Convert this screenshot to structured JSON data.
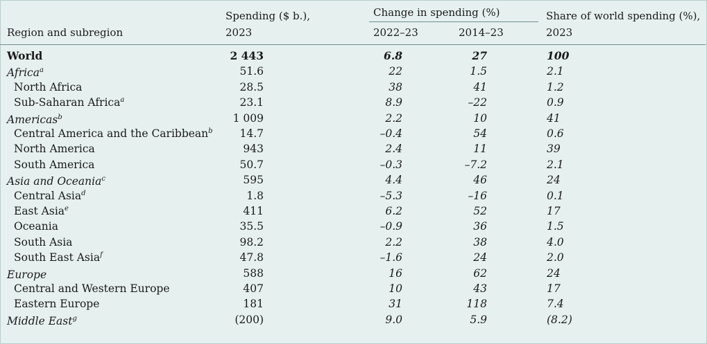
{
  "headers": {
    "region": "Region and subregion",
    "spending_l1": "Spending ($ b.),",
    "spending_l2": "2023",
    "change": "Change in spending (%)",
    "p1": "2022–23",
    "p2": "2014–23",
    "share_l1": "Share of world spending (%),",
    "share_l2": "2023"
  },
  "rows": [
    {
      "name": "World",
      "sup": "",
      "spending": "2 443",
      "c1": "6.8",
      "c2": "27",
      "share": "100",
      "type": "world"
    },
    {
      "name": "Africa",
      "sup": "a",
      "spending": "51.6",
      "c1": "22",
      "c2": "1.5",
      "share": "2.1",
      "type": "region"
    },
    {
      "name": "North Africa",
      "sup": "",
      "spending": "28.5",
      "c1": "38",
      "c2": "41",
      "share": "1.2",
      "type": "sub"
    },
    {
      "name": "Sub-Saharan Africa",
      "sup": "a",
      "spending": "23.1",
      "c1": "8.9",
      "c2": "–22",
      "share": "0.9",
      "type": "sub"
    },
    {
      "name": "Americas",
      "sup": "b",
      "spending": "1 009",
      "c1": "2.2",
      "c2": "10",
      "share": "41",
      "type": "region"
    },
    {
      "name": "Central America and the Caribbean",
      "sup": "b",
      "spending": "14.7",
      "c1": "–0.4",
      "c2": "54",
      "share": "0.6",
      "type": "sub"
    },
    {
      "name": "North America",
      "sup": "",
      "spending": "943",
      "c1": "2.4",
      "c2": "11",
      "share": "39",
      "type": "sub"
    },
    {
      "name": "South America",
      "sup": "",
      "spending": "50.7",
      "c1": "–0.3",
      "c2": "–7.2",
      "share": "2.1",
      "type": "sub"
    },
    {
      "name": "Asia and Oceania",
      "sup": "c",
      "spending": "595",
      "c1": "4.4",
      "c2": "46",
      "share": "24",
      "type": "region"
    },
    {
      "name": "Central Asia",
      "sup": "d",
      "spending": "1.8",
      "c1": "–5.3",
      "c2": "–16",
      "share": "0.1",
      "type": "sub"
    },
    {
      "name": "East Asia",
      "sup": "e",
      "spending": "411",
      "c1": "6.2",
      "c2": "52",
      "share": "17",
      "type": "sub"
    },
    {
      "name": "Oceania",
      "sup": "",
      "spending": "35.5",
      "c1": "–0.9",
      "c2": "36",
      "share": "1.5",
      "type": "sub"
    },
    {
      "name": "South Asia",
      "sup": "",
      "spending": "98.2",
      "c1": "2.2",
      "c2": "38",
      "share": "4.0",
      "type": "sub"
    },
    {
      "name": "South East Asia",
      "sup": "f",
      "spending": "47.8",
      "c1": "–1.6",
      "c2": "24",
      "share": "2.0",
      "type": "sub"
    },
    {
      "name": "Europe",
      "sup": "",
      "spending": "588",
      "c1": "16",
      "c2": "62",
      "share": "24",
      "type": "region"
    },
    {
      "name": "Central and Western Europe",
      "sup": "",
      "spending": "407",
      "c1": "10",
      "c2": "43",
      "share": "17",
      "type": "sub"
    },
    {
      "name": "Eastern Europe",
      "sup": "",
      "spending": "181",
      "c1": "31",
      "c2": "118",
      "share": "7.4",
      "type": "sub"
    },
    {
      "name": "Middle East",
      "sup": "g",
      "spending": "(200)",
      "c1": "9.0",
      "c2": "5.9",
      "share": "(8.2)",
      "type": "region"
    }
  ]
}
